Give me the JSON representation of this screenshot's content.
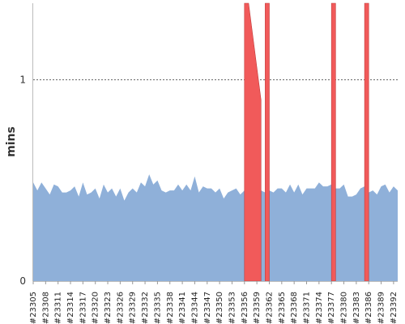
{
  "chart_data": {
    "type": "area",
    "ylabel": "mins",
    "ylim": [
      0,
      1.38
    ],
    "y_ticks": [
      {
        "value": 0,
        "label": "0"
      },
      {
        "value": 1,
        "label": "1"
      }
    ],
    "reference_line": {
      "value": 1,
      "style": "dotted"
    },
    "x_start_build": 23305,
    "x_end_build": 23393,
    "x_ticks": [
      "#23305",
      "#23308",
      "#23311",
      "#23314",
      "#23317",
      "#23320",
      "#23323",
      "#23326",
      "#23329",
      "#23332",
      "#23335",
      "#23338",
      "#23341",
      "#23344",
      "#23347",
      "#23350",
      "#23353",
      "#23356",
      "#23359",
      "#23362",
      "#23365",
      "#23368",
      "#23371",
      "#23374",
      "#23377",
      "#23380",
      "#23383",
      "#23386",
      "#23389",
      "#23392"
    ],
    "series": [
      {
        "color": "#8fb0d9",
        "values": [
          0.49,
          0.45,
          0.49,
          0.46,
          0.43,
          0.48,
          0.47,
          0.44,
          0.44,
          0.45,
          0.47,
          0.42,
          0.49,
          0.43,
          0.44,
          0.46,
          0.41,
          0.48,
          0.44,
          0.46,
          0.42,
          0.46,
          0.4,
          0.44,
          0.46,
          0.44,
          0.49,
          0.47,
          0.53,
          0.48,
          0.5,
          0.45,
          0.44,
          0.45,
          0.45,
          0.48,
          0.45,
          0.48,
          0.45,
          0.52,
          0.44,
          0.47,
          0.46,
          0.46,
          0.44,
          0.46,
          0.41,
          0.44,
          0.45,
          0.46,
          0.43,
          0.45,
          0.44,
          0.44,
          0.44,
          0.45,
          0.44,
          0.45,
          0.44,
          0.46,
          0.46,
          0.44,
          0.48,
          0.44,
          0.48,
          0.43,
          0.46,
          0.46,
          0.46,
          0.49,
          0.47,
          0.47,
          0.48,
          0.46,
          0.46,
          0.48,
          0.42,
          0.42,
          0.43,
          0.46,
          0.47,
          0.44,
          0.45,
          0.43,
          0.47,
          0.48,
          0.44,
          0.47,
          0.45
        ]
      },
      {
        "color": "#f15a5a",
        "values": [
          0,
          0,
          0,
          0,
          0,
          0,
          0,
          0,
          0,
          0,
          0,
          0,
          0,
          0,
          0,
          0,
          0,
          0,
          0,
          0,
          0,
          0,
          0,
          0,
          0,
          0,
          0,
          0,
          0,
          0,
          0,
          0,
          0,
          0,
          0,
          0,
          0,
          0,
          0,
          0,
          0,
          0,
          0,
          0,
          0,
          0,
          0,
          0,
          0,
          0,
          0,
          0,
          0,
          0,
          0,
          0,
          0,
          0,
          0,
          0,
          0,
          0,
          0,
          0,
          0,
          0,
          0,
          0,
          0,
          0,
          0,
          0,
          0,
          0,
          0,
          0,
          0,
          0,
          0,
          0,
          0,
          0,
          0,
          0,
          0,
          0,
          0,
          0,
          0
        ],
        "spikes": [
          {
            "from": 23356,
            "to": 23360,
            "value": 1.38,
            "peak_at": 23357,
            "end_value": 0.9
          },
          {
            "from": 23361,
            "to": 23362,
            "value": 1.38
          },
          {
            "from": 23377,
            "to": 23378,
            "value": 1.38
          },
          {
            "from": 23385,
            "to": 23386,
            "value": 1.38
          }
        ]
      }
    ]
  }
}
